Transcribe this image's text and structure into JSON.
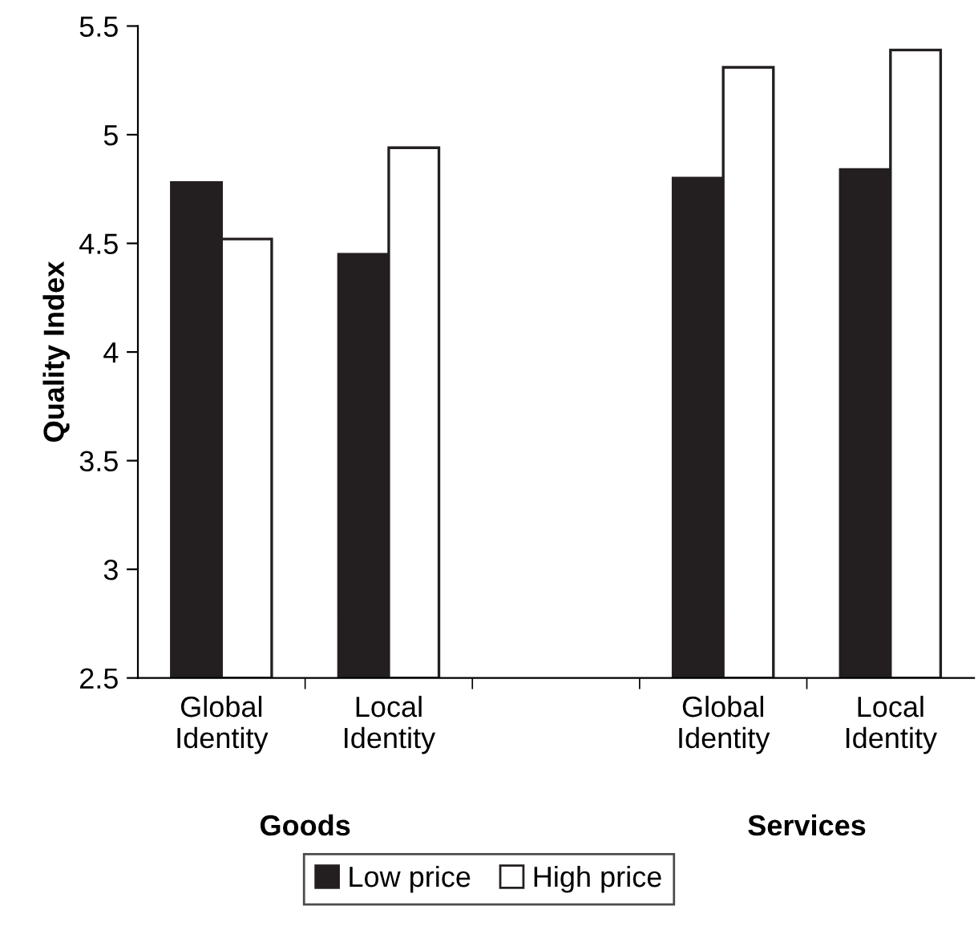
{
  "chart_data": {
    "type": "bar",
    "ylabel": "Quality Index",
    "categories": [
      "Global\nIdentity",
      "Local\nIdentity",
      null,
      "Global\nIdentity",
      "Local\nIdentity"
    ],
    "series": [
      {
        "name": "Low price",
        "color": "#231f20",
        "values": [
          4.78,
          4.45,
          null,
          4.8,
          4.84
        ]
      },
      {
        "name": "High price",
        "color": "#ffffff",
        "values": [
          4.52,
          4.94,
          null,
          5.31,
          5.39
        ]
      }
    ],
    "annotations": [
      "Goods",
      "Services"
    ],
    "ylim": [
      2.5,
      5.5
    ],
    "yticks": [
      2.5,
      3,
      3.5,
      4,
      4.5,
      5,
      5.5
    ],
    "grid": false,
    "legend": "bottom"
  }
}
